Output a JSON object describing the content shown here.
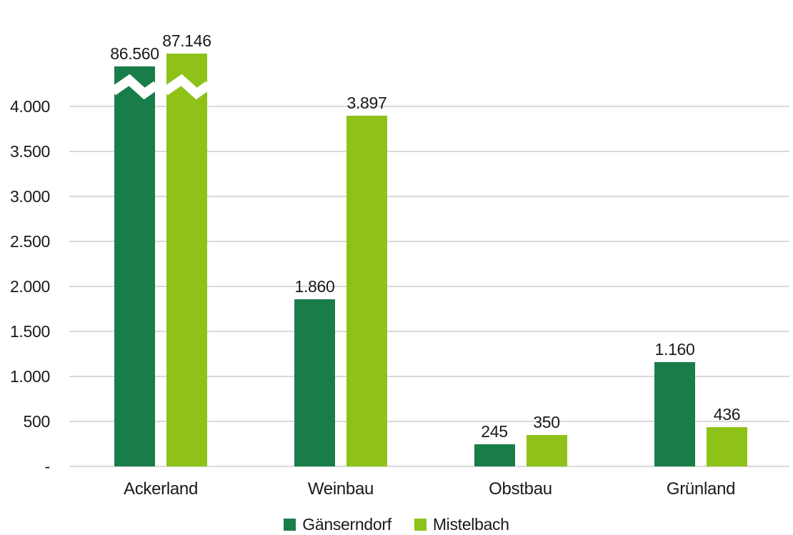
{
  "chart_data": {
    "type": "bar",
    "title": "",
    "categories": [
      "Ackerland",
      "Weinbau",
      "Obstbau",
      "Grünland"
    ],
    "series": [
      {
        "name": "Gänserndorf",
        "color": "#197d49",
        "values": [
          86560,
          1860,
          245,
          1160
        ],
        "value_labels": [
          "86.560",
          "1.860",
          "245",
          "1.160"
        ]
      },
      {
        "name": "Mistelbach",
        "color": "#8ec219",
        "values": [
          87146,
          3897,
          350,
          436
        ],
        "value_labels": [
          "87.146",
          "3.897",
          "350",
          "436"
        ]
      }
    ],
    "y_axis": {
      "tick_labels": [
        "-",
        "500",
        "1.000",
        "1.500",
        "2.000",
        "2.500",
        "3.000",
        "3.500",
        "4.000"
      ],
      "tick_values": [
        0,
        500,
        1000,
        1500,
        2000,
        2500,
        3000,
        3500,
        4000
      ],
      "max": 4000
    },
    "axis_break": {
      "category": "Ackerland",
      "note": "bars exceed axis maximum and are truncated with white zigzag break marks"
    },
    "grid": true,
    "legend_position": "bottom",
    "xlabel": "",
    "ylabel": ""
  },
  "colors": {
    "grid": "#d9d9d9",
    "text": "#1a1a1a",
    "background": "#ffffff",
    "break_mark": "#ffffff"
  }
}
